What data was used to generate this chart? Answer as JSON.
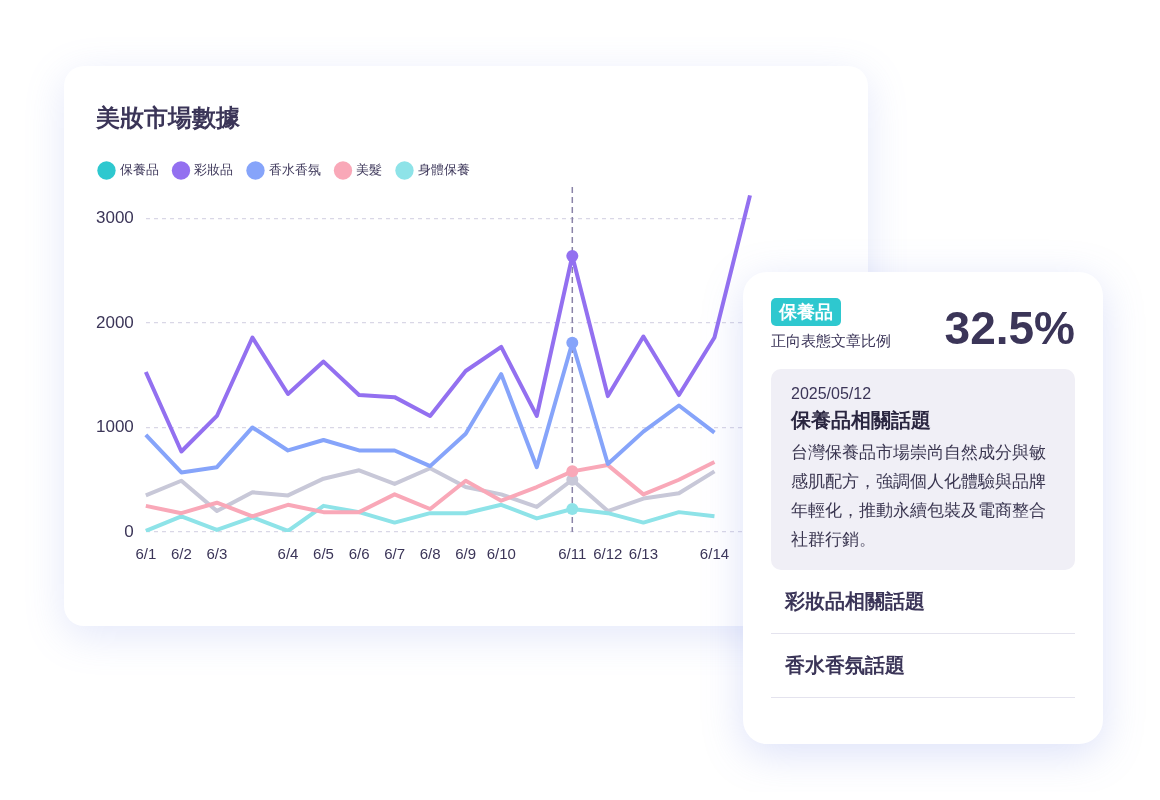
{
  "chart_data": [
    {
      "type": "line",
      "title": "美妝市場數據",
      "categories": [
        "6/1",
        "6/2",
        "6/3",
        null,
        "6/4",
        "6/5",
        "6/6",
        "6/7",
        "6/8",
        "6/9",
        "6/10",
        null,
        "6/11",
        "6/12",
        "6/13",
        null,
        "6/14",
        null
      ],
      "ylim": [
        0,
        3300
      ],
      "yticks": [
        0,
        1000,
        2000,
        3000
      ],
      "grid": "y",
      "legend": "top left",
      "marker": "none",
      "line_style": "solid",
      "ref_lines": [
        {
          "axis": "x",
          "value": "6/11",
          "color": "#8a84a8",
          "line_style": "dashed"
        }
      ],
      "series": [
        {
          "name": "保養品",
          "color": "#2ec8cf",
          "values": [
            null,
            null,
            null,
            null,
            null,
            null,
            null,
            null,
            null,
            null,
            null,
            null,
            null,
            null,
            null,
            null,
            null,
            null
          ]
        },
        {
          "name": "彩妝品",
          "color": "#9370f0",
          "values": [
            1530,
            770,
            1110,
            1860,
            1320,
            1630,
            1310,
            1290,
            1110,
            1540,
            1770,
            1110,
            2640,
            1300,
            1870,
            1310,
            1860,
            3220
          ]
        },
        {
          "name": "香水香氛",
          "color": "#86a4fa",
          "values": [
            930,
            570,
            620,
            1000,
            780,
            880,
            780,
            780,
            630,
            940,
            1510,
            620,
            1810,
            650,
            960,
            1210,
            950,
            null
          ]
        },
        {
          "name": "美髮",
          "color": "#f9a8b8",
          "values": [
            250,
            180,
            280,
            150,
            260,
            190,
            190,
            360,
            220,
            490,
            300,
            430,
            580,
            640,
            360,
            500,
            670,
            null
          ]
        },
        {
          "name": "身體保養",
          "color": "#8ee3e8",
          "values": [
            10,
            150,
            20,
            140,
            10,
            250,
            190,
            90,
            180,
            180,
            260,
            130,
            220,
            180,
            90,
            190,
            150,
            null
          ]
        },
        {
          "color": "#c8c8d8",
          "values": [
            350,
            490,
            200,
            380,
            350,
            510,
            590,
            460,
            610,
            430,
            360,
            240,
            500,
            200,
            320,
            370,
            580,
            null
          ]
        }
      ]
    },
    {
      "type": "other",
      "annotations": [
        "保養品",
        "正向表態文章比例",
        "32.5%",
        "2025/05/12",
        "保養品相關話題",
        "台灣保養品市場崇尚自然成分與敏感肌配方，強調個人化體驗與品牌年輕化，推動永續包裝及電商整合社群行銷。",
        "彩妝品相關話題",
        "香水香氛話題"
      ]
    }
  ]
}
